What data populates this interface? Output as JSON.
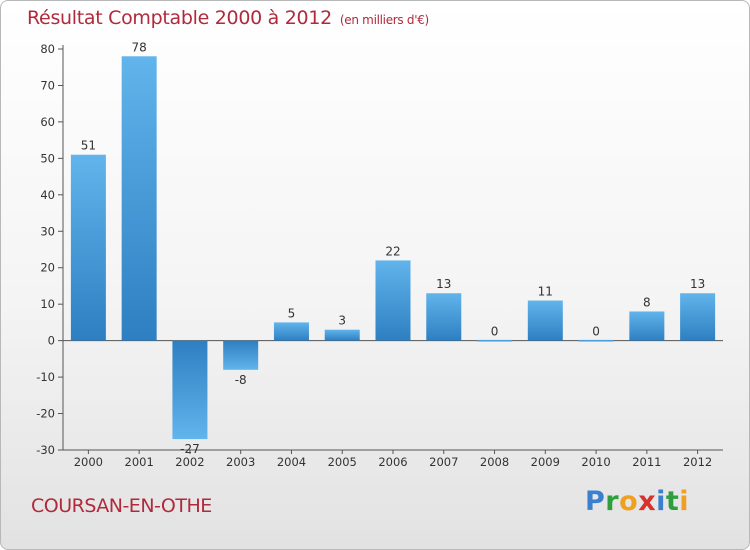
{
  "title": "Résultat Comptable 2000 à 2012",
  "subtitle": "(en milliers d'€)",
  "city": "COURSAN-EN-OTHE",
  "logo": {
    "letters": [
      "P",
      "r",
      "o",
      "x",
      "i",
      "t",
      "i"
    ],
    "colors": [
      "#3a7fd0",
      "#2f9e3d",
      "#f0a020",
      "#d8322c",
      "#3a7fd0",
      "#2f9e3d",
      "#f0a020"
    ]
  },
  "colors": {
    "bar_light": "#62b4ec",
    "bar_dark": "#2d7fc1",
    "axis": "#555555",
    "grid": "#d5d5d5"
  },
  "chart_data": {
    "type": "bar",
    "title": "Résultat Comptable 2000 à 2012",
    "subtitle": "(en milliers d'€)",
    "xlabel": "",
    "ylabel": "",
    "categories": [
      "2000",
      "2001",
      "2002",
      "2003",
      "2004",
      "2005",
      "2006",
      "2007",
      "2008",
      "2009",
      "2010",
      "2011",
      "2012"
    ],
    "values": [
      51,
      78,
      -27,
      -8,
      5,
      3,
      22,
      13,
      0,
      11,
      0,
      8,
      13
    ],
    "ylim": [
      -30,
      80
    ],
    "yticks": [
      -30,
      -20,
      -10,
      0,
      10,
      20,
      30,
      40,
      50,
      60,
      70,
      80
    ],
    "grid": false
  }
}
